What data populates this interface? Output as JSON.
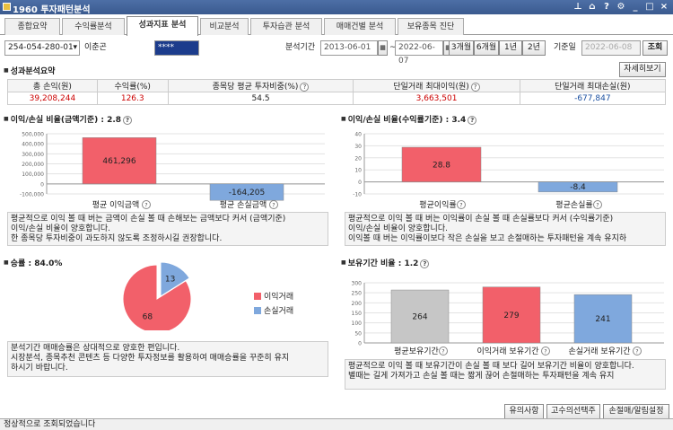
{
  "window": {
    "title": "1960 투자패턴분석"
  },
  "tabs": [
    "종합요약",
    "수익률분석",
    "성과지표 분석",
    "비교분석",
    "투자습관 분석",
    "매매건별 분석",
    "보유종목 진단"
  ],
  "controls": {
    "account": "254-054-280-01",
    "account_name": "이춘곤",
    "password": "****",
    "period_label": "분석기간",
    "start": "2013-06-01",
    "end": "2022-06-07",
    "ranges": [
      "3개월",
      "6개월",
      "1년",
      "2년"
    ],
    "base_label": "기준일",
    "base_date": "2022-06-08",
    "search": "조회"
  },
  "summary": {
    "title": "성과분석요약",
    "detail_btn": "자세히보기",
    "headers": [
      "총 손익(원)",
      "수익률(%)",
      "종목당 평균 투자비중(%)",
      "단일거래 최대이익(원)",
      "단일거래 최대손실(원)"
    ],
    "values": [
      "39,208,244",
      "126.3",
      "54.5",
      "3,663,501",
      "-677,847"
    ]
  },
  "chart1": {
    "title": "이익/손실 비율(금액기준) : 2.8",
    "chart_data": {
      "type": "bar",
      "categories": [
        "평균 이익금액",
        "평균 손실금액"
      ],
      "values": [
        461296,
        -164205
      ],
      "ylim": [
        -100000,
        500000
      ],
      "yticks": [
        500000,
        400000,
        300000,
        200000,
        100000,
        0,
        -100000
      ],
      "ytick_labels": [
        "500,000",
        "400,000",
        "300,000",
        "200,000",
        "100,000",
        "0",
        "-100,000"
      ],
      "value_labels": [
        "461,296",
        "-164,205"
      ]
    },
    "desc": [
      "평균적으로 이익 볼 때 버는 금액이 손실 볼 때 손해보는 금액보다 커서 (금액기준)",
      "이익/손실 비율이 양호합니다.",
      "한 종목당 투자비중이 과도하지 않도록 조정하시길 권장합니다."
    ]
  },
  "chart2": {
    "title": "이익/손실 비율(수익률기준) : 3.4",
    "chart_data": {
      "type": "bar",
      "categories": [
        "평균이익률",
        "평균손실률"
      ],
      "values": [
        28.8,
        -8.4
      ],
      "ylim": [
        -10,
        40
      ],
      "yticks": [
        40,
        30,
        20,
        10,
        0,
        -10
      ],
      "value_labels": [
        "28.8",
        "-8.4"
      ]
    },
    "desc": [
      "평균적으로 이익 볼 때 버는 이익률이 손실 볼 때 손실률보다 커서 (수익률기준)",
      "이익/손실 비율이 양호합니다.",
      "이익볼 때 버는 이익률이보다 작은 손실을 보고 손절매하는 투자패턴을 계속 유지하"
    ]
  },
  "chart3": {
    "title": "승률 : 84.0%",
    "chart_data": {
      "type": "pie",
      "categories": [
        "이익거래",
        "손실거래"
      ],
      "values": [
        68,
        13
      ]
    },
    "legend": [
      "이익거래",
      "손실거래"
    ],
    "desc": [
      "분석기간 매매승률은 상대적으로 양호한 편입니다.",
      "시장분석, 종목추천 콘텐츠 등 다양한 투자정보를 활용하여 매매승률을 꾸준히 유지",
      "하시기 바랍니다."
    ]
  },
  "chart4": {
    "title": "보유기간 비율 : 1.2",
    "chart_data": {
      "type": "bar",
      "categories": [
        "평균보유기간",
        "이익거래 보유기간",
        "손실거래 보유기간"
      ],
      "values": [
        264,
        279,
        241
      ],
      "ylim": [
        0,
        300
      ],
      "yticks": [
        300,
        250,
        200,
        150,
        100,
        50,
        0
      ]
    },
    "desc": [
      "평균적으로 이익 볼 때 보유기간이 손실 볼 때 보다 길어 보유기간 비율이 양호합니다.",
      "별때는 길게 가져가고 손실 볼 때는 짧게 끊어 손절매하는 투자패턴을 계속 유지"
    ]
  },
  "footer": {
    "buttons": [
      "유의사항",
      "고수의선택주",
      "손절매/알림설정"
    ]
  },
  "status": "정상적으로 조회되었습니다",
  "colors": {
    "profit": "#f2606a",
    "loss": "#7fa8dd",
    "gray": "#c6c6c6"
  }
}
